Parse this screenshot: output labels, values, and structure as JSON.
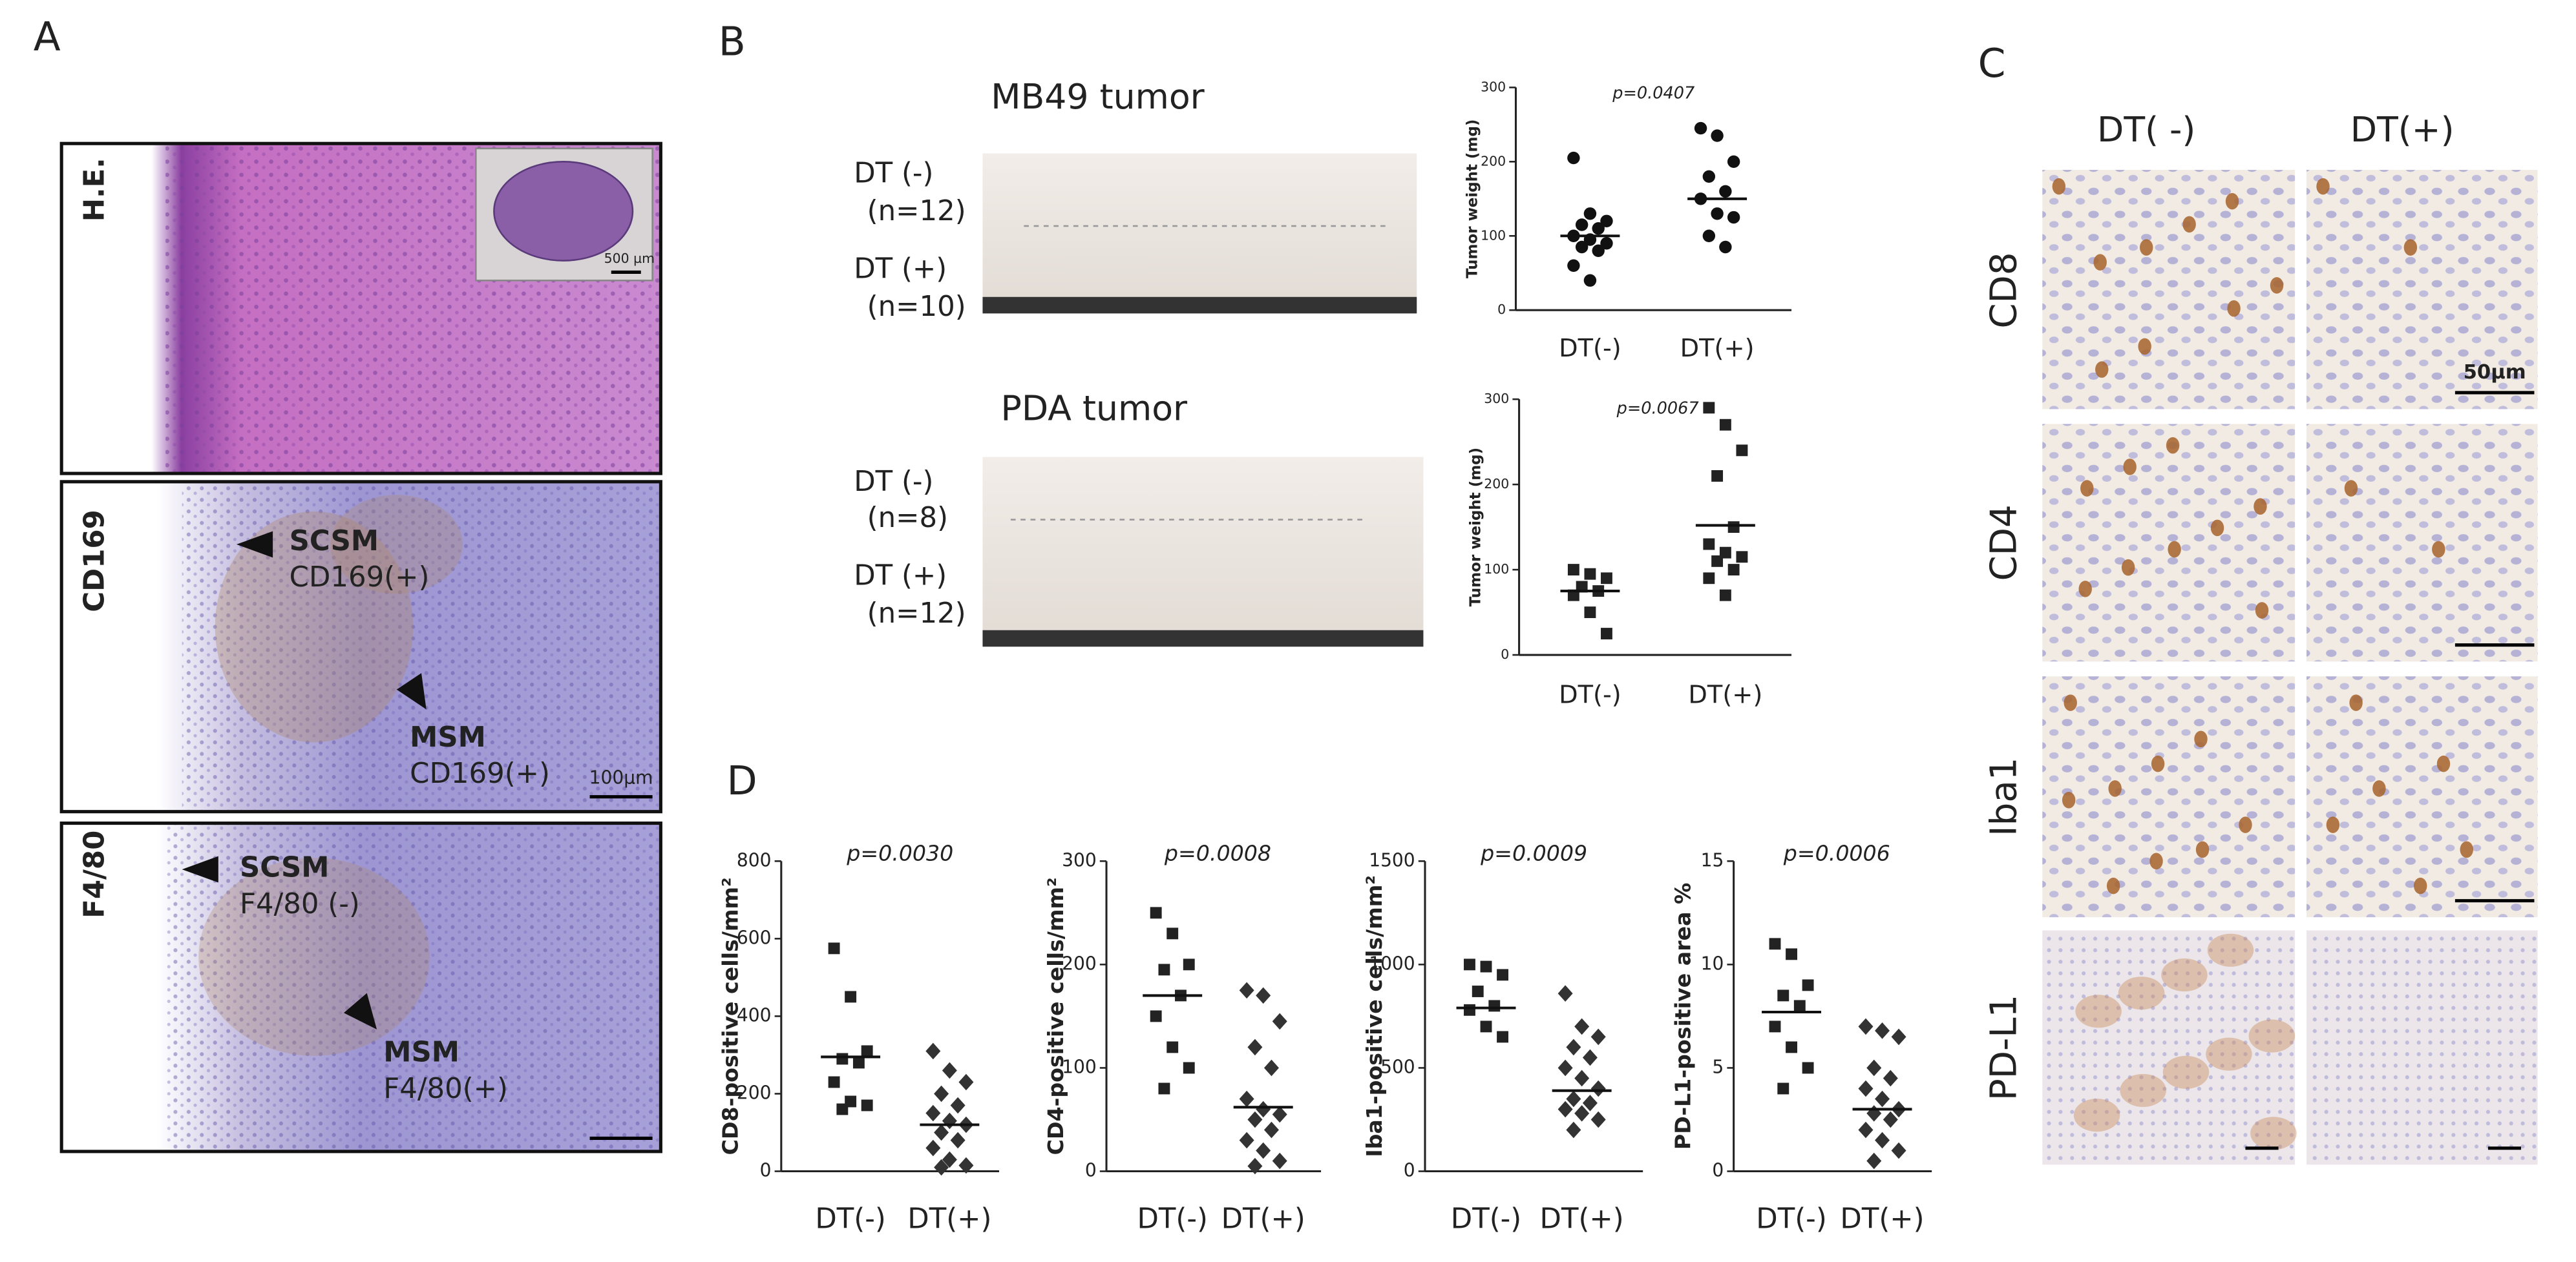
{
  "figure": {
    "panel_a": {
      "letter": "A",
      "he_label": "H.E.",
      "inset_scale": "500 µm",
      "cd169_label": "CD169",
      "cd169_scsm": "SCSM",
      "cd169_scsm_stain": "CD169(+)",
      "cd169_msm": "MSM",
      "cd169_msm_stain": "CD169(+)",
      "cd169_scale": "100µm",
      "f480_label": "F4/80",
      "f480_scsm": "SCSM",
      "f480_scsm_stain": "F4/80 (-)",
      "f480_msm": "MSM",
      "f480_msm_stain": "F4/80(+)"
    },
    "panel_b": {
      "letter": "B",
      "mb49_title": "MB49 tumor",
      "mb49_neg": "DT (-)",
      "mb49_neg_n": "(n=12)",
      "mb49_pos": "DT (+)",
      "mb49_pos_n": "(n=10)",
      "pda_title": "PDA tumor",
      "pda_neg": "DT (-)",
      "pda_neg_n": "(n=8)",
      "pda_pos": "DT (+)",
      "pda_pos_n": "(n=12)"
    },
    "panel_c": {
      "letter": "C",
      "col_neg": "DT( -)",
      "col_pos": "DT(+)",
      "rows": [
        "CD8",
        "CD4",
        "Iba1",
        "PD-L1"
      ],
      "scale": "50µm"
    },
    "panel_d": {
      "letter": "D"
    }
  },
  "chart_data": [
    {
      "type": "dotplot",
      "y_label": "Tumor weight (mg)",
      "annotation": "p=0.0407",
      "categories": [
        "DT(-)",
        "DT(+)"
      ],
      "ylim": [
        0,
        300
      ],
      "yticks": [
        0,
        100,
        200,
        300
      ],
      "groups": [
        {
          "marker": "circle",
          "values": [
            205,
            130,
            120,
            115,
            110,
            100,
            95,
            90,
            85,
            80,
            60,
            40
          ],
          "mean": 100
        },
        {
          "marker": "circle",
          "values": [
            245,
            235,
            200,
            180,
            160,
            150,
            130,
            125,
            100,
            85
          ],
          "mean": 150
        }
      ]
    },
    {
      "type": "dotplot",
      "y_label": "Tumor weight (mg)",
      "annotation": "p=0.0067",
      "categories": [
        "DT(-)",
        "DT(+)"
      ],
      "ylim": [
        0,
        300
      ],
      "yticks": [
        0,
        100,
        200,
        300
      ],
      "groups": [
        {
          "marker": "square",
          "values": [
            100,
            95,
            90,
            80,
            75,
            70,
            50,
            25
          ],
          "mean": 75
        },
        {
          "marker": "square",
          "values": [
            290,
            270,
            240,
            210,
            150,
            130,
            120,
            115,
            110,
            100,
            90,
            70
          ],
          "mean": 152
        }
      ]
    },
    {
      "type": "dotplot",
      "y_label": "CD8-positive cells/mm²",
      "annotation": "p=0.0030",
      "categories": [
        "DT(-)",
        "DT(+)"
      ],
      "ylim": [
        0,
        800
      ],
      "yticks": [
        0,
        200,
        400,
        600,
        800
      ],
      "groups": [
        {
          "marker": "square",
          "values": [
            575,
            450,
            310,
            290,
            280,
            230,
            180,
            170,
            160
          ],
          "mean": 295
        },
        {
          "marker": "diamond",
          "values": [
            310,
            260,
            230,
            200,
            170,
            150,
            130,
            120,
            100,
            80,
            60,
            30,
            15,
            10
          ],
          "mean": 120
        }
      ]
    },
    {
      "type": "dotplot",
      "y_label": "CD4-positive cells/mm²",
      "annotation": "p=0.0008",
      "categories": [
        "DT(-)",
        "DT(+)"
      ],
      "ylim": [
        0,
        300
      ],
      "yticks": [
        0,
        100,
        200,
        300
      ],
      "groups": [
        {
          "marker": "square",
          "values": [
            250,
            230,
            200,
            195,
            170,
            150,
            120,
            100,
            80
          ],
          "mean": 170
        },
        {
          "marker": "diamond",
          "values": [
            175,
            170,
            145,
            120,
            100,
            70,
            60,
            55,
            50,
            40,
            30,
            20,
            10,
            5
          ],
          "mean": 62
        }
      ]
    },
    {
      "type": "dotplot",
      "y_label": "Iba1-positive cells/mm²",
      "annotation": "p=0.0009",
      "categories": [
        "DT(-)",
        "DT(+)"
      ],
      "ylim": [
        0,
        1500
      ],
      "yticks": [
        0,
        500,
        1000,
        1500
      ],
      "groups": [
        {
          "marker": "square",
          "values": [
            1000,
            990,
            950,
            870,
            800,
            780,
            700,
            650
          ],
          "mean": 790
        },
        {
          "marker": "diamond",
          "values": [
            860,
            700,
            650,
            600,
            550,
            500,
            450,
            400,
            350,
            330,
            300,
            280,
            250,
            200
          ],
          "mean": 390
        }
      ]
    },
    {
      "type": "dotplot",
      "y_label": "PD-L1-positive area %",
      "annotation": "p=0.0006",
      "categories": [
        "DT(-)",
        "DT(+)"
      ],
      "ylim": [
        0,
        15
      ],
      "yticks": [
        0,
        5,
        10,
        15
      ],
      "groups": [
        {
          "marker": "square",
          "values": [
            11,
            10.5,
            9,
            8.5,
            8,
            7,
            6,
            5,
            4
          ],
          "mean": 7.7
        },
        {
          "marker": "diamond",
          "values": [
            7,
            6.8,
            6.5,
            5,
            4.5,
            4,
            3.5,
            3,
            2.8,
            2.5,
            2,
            1.5,
            1,
            0.5
          ],
          "mean": 3.0
        }
      ]
    }
  ]
}
